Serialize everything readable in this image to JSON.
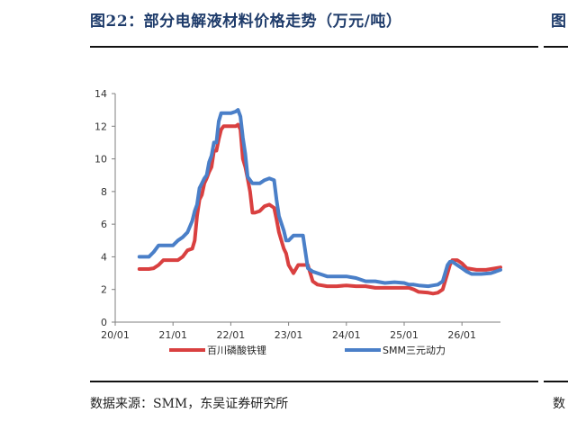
{
  "figure": {
    "title": "图22：部分电解液材料价格走势（万元/吨）",
    "title_right_fragment": "图",
    "source": "数据来源：SMM，东吴证券研究所",
    "source_right_fragment": "数"
  },
  "chart_data": {
    "type": "line",
    "title": "",
    "xlabel": "",
    "ylabel": "",
    "ylim": [
      0,
      14
    ],
    "yticks": [
      0,
      2,
      4,
      6,
      8,
      10,
      12,
      14
    ],
    "xlim": [
      0,
      80
    ],
    "xtick_labels": [
      "20/01",
      "21/01",
      "22/01",
      "23/01",
      "24/01",
      "25/01",
      "26/01"
    ],
    "xtick_positions": [
      0,
      12,
      24,
      36,
      48,
      60,
      72
    ],
    "legend": "bottom",
    "grid": false,
    "series": [
      {
        "name": "百川磷酸铁锂",
        "color": "#d94040",
        "points": [
          [
            5,
            3.25
          ],
          [
            7,
            3.25
          ],
          [
            8,
            3.3
          ],
          [
            9,
            3.5
          ],
          [
            10,
            3.8
          ],
          [
            12,
            3.8
          ],
          [
            13,
            3.8
          ],
          [
            14,
            4.0
          ],
          [
            15,
            4.4
          ],
          [
            16,
            4.5
          ],
          [
            16.5,
            5.0
          ],
          [
            17,
            6.5
          ],
          [
            17.5,
            7.5
          ],
          [
            18,
            7.8
          ],
          [
            18.5,
            8.5
          ],
          [
            19,
            8.8
          ],
          [
            19.5,
            9.2
          ],
          [
            20,
            9.5
          ],
          [
            20.5,
            10.5
          ],
          [
            21,
            10.5
          ],
          [
            21.5,
            11.2
          ],
          [
            22,
            11.8
          ],
          [
            22.5,
            12.0
          ],
          [
            23,
            12.0
          ],
          [
            24,
            12.0
          ],
          [
            25,
            12.0
          ],
          [
            25.5,
            12.1
          ],
          [
            26,
            11.8
          ],
          [
            26.5,
            10.0
          ],
          [
            27,
            9.5
          ],
          [
            27.5,
            8.8
          ],
          [
            28,
            8.0
          ],
          [
            28.5,
            6.7
          ],
          [
            29,
            6.7
          ],
          [
            30,
            6.8
          ],
          [
            31,
            7.1
          ],
          [
            32,
            7.2
          ],
          [
            33,
            7.0
          ],
          [
            33.5,
            6.3
          ],
          [
            34,
            5.5
          ],
          [
            35,
            4.5
          ],
          [
            35.5,
            4.2
          ],
          [
            36,
            3.5
          ],
          [
            37,
            3.0
          ],
          [
            38,
            3.5
          ],
          [
            39,
            3.5
          ],
          [
            40,
            3.5
          ],
          [
            40.5,
            3.0
          ],
          [
            41,
            2.5
          ],
          [
            42,
            2.3
          ],
          [
            44,
            2.2
          ],
          [
            46,
            2.2
          ],
          [
            48,
            2.25
          ],
          [
            50,
            2.2
          ],
          [
            52,
            2.2
          ],
          [
            54,
            2.1
          ],
          [
            56,
            2.1
          ],
          [
            58,
            2.1
          ],
          [
            60,
            2.1
          ],
          [
            61,
            2.1
          ],
          [
            62,
            2.0
          ],
          [
            63,
            1.85
          ],
          [
            65,
            1.8
          ],
          [
            66,
            1.75
          ],
          [
            67,
            1.8
          ],
          [
            68,
            2.0
          ],
          [
            68.5,
            2.5
          ],
          [
            69,
            3.0
          ],
          [
            69.5,
            3.5
          ],
          [
            70,
            3.8
          ],
          [
            71,
            3.8
          ],
          [
            72,
            3.6
          ],
          [
            73,
            3.3
          ],
          [
            75,
            3.2
          ],
          [
            77,
            3.2
          ],
          [
            79,
            3.3
          ],
          [
            80,
            3.35
          ]
        ]
      },
      {
        "name": "SMM三元动力",
        "color": "#4a7fc8",
        "points": [
          [
            5,
            4.0
          ],
          [
            7,
            4.0
          ],
          [
            8,
            4.3
          ],
          [
            9,
            4.7
          ],
          [
            10,
            4.7
          ],
          [
            12,
            4.7
          ],
          [
            13,
            5.0
          ],
          [
            14,
            5.2
          ],
          [
            15,
            5.5
          ],
          [
            16,
            6.2
          ],
          [
            16.5,
            6.8
          ],
          [
            17,
            7.2
          ],
          [
            17.5,
            8.2
          ],
          [
            18,
            8.5
          ],
          [
            18.5,
            8.8
          ],
          [
            19,
            9.0
          ],
          [
            19.5,
            9.8
          ],
          [
            20,
            10.2
          ],
          [
            20.5,
            11.0
          ],
          [
            21,
            11.0
          ],
          [
            21.5,
            12.3
          ],
          [
            22,
            12.8
          ],
          [
            23,
            12.8
          ],
          [
            24,
            12.8
          ],
          [
            25,
            12.9
          ],
          [
            25.5,
            13.0
          ],
          [
            26,
            12.6
          ],
          [
            26.5,
            11.3
          ],
          [
            27,
            10.3
          ],
          [
            27.5,
            8.9
          ],
          [
            28,
            8.7
          ],
          [
            28.5,
            8.5
          ],
          [
            29,
            8.5
          ],
          [
            30,
            8.5
          ],
          [
            31,
            8.7
          ],
          [
            32,
            8.8
          ],
          [
            33,
            8.7
          ],
          [
            33.5,
            7.5
          ],
          [
            34,
            6.5
          ],
          [
            35,
            5.6
          ],
          [
            35.5,
            5.0
          ],
          [
            36,
            5.0
          ],
          [
            37,
            5.3
          ],
          [
            38,
            5.3
          ],
          [
            39,
            5.3
          ],
          [
            39.5,
            4.3
          ],
          [
            40,
            3.3
          ],
          [
            41,
            3.1
          ],
          [
            42,
            3.0
          ],
          [
            43,
            2.9
          ],
          [
            44,
            2.8
          ],
          [
            46,
            2.8
          ],
          [
            48,
            2.8
          ],
          [
            50,
            2.7
          ],
          [
            52,
            2.5
          ],
          [
            54,
            2.5
          ],
          [
            56,
            2.4
          ],
          [
            58,
            2.45
          ],
          [
            60,
            2.4
          ],
          [
            61,
            2.3
          ],
          [
            62,
            2.3
          ],
          [
            63,
            2.25
          ],
          [
            65,
            2.2
          ],
          [
            66,
            2.25
          ],
          [
            67,
            2.3
          ],
          [
            68,
            2.5
          ],
          [
            68.5,
            3.0
          ],
          [
            69,
            3.5
          ],
          [
            69.5,
            3.7
          ],
          [
            70,
            3.7
          ],
          [
            71,
            3.5
          ],
          [
            72,
            3.3
          ],
          [
            73,
            3.1
          ],
          [
            74,
            2.95
          ],
          [
            76,
            2.95
          ],
          [
            78,
            3.0
          ],
          [
            79,
            3.1
          ],
          [
            80,
            3.2
          ]
        ]
      }
    ]
  }
}
